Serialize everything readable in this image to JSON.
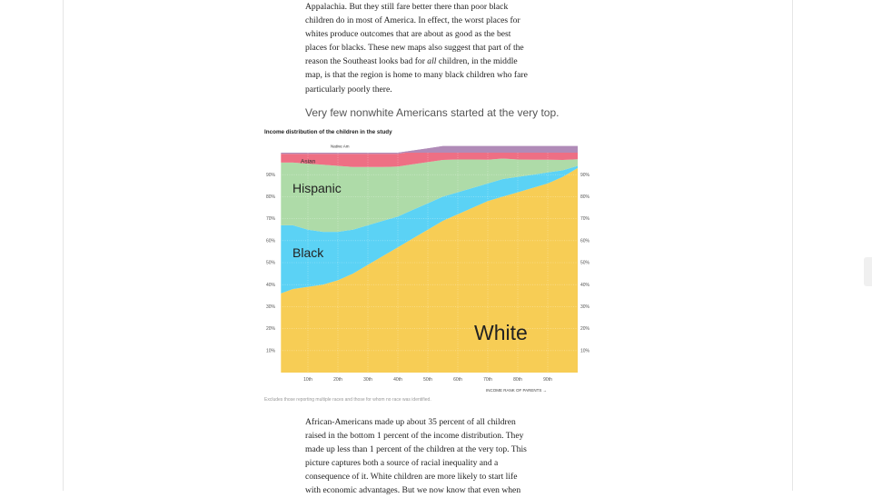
{
  "article": {
    "para_top_lines": [
      "Appalachia. But they still fare better there than poor black",
      "children do in most of America. In effect, the worst places for",
      "whites produce outcomes that are about as good as the best",
      "places for blacks. These new maps also suggest that part of the",
      "reason the Southeast looks bad for ",
      "all",
      " children, in the middle",
      "map, is that the region is home to many black children who fare",
      "particularly poorly there."
    ],
    "subhead": "Very few nonwhite Americans started at the very top.",
    "para_bottom_lines": [
      "African-Americans made up about 35 percent of all children",
      "raised in the bottom 1 percent of the income distribution. They",
      "made up less than 1 percent of the children at the very top. This",
      "picture captures both a source of racial inequality and a",
      "consequence of it. White children are more likely to start life",
      "with economic advantages. But we now know that even when"
    ]
  },
  "chart": {
    "title": "Income distribution of the children in the study",
    "note": "Excludes those reporting multiple races and those for whom no race was identified.",
    "series_labels": {
      "native_am": "Native Am",
      "asian": "Asian",
      "hispanic": "Hispanic",
      "black": "Black",
      "white": "White"
    },
    "xlabel": "INCOME RANK OF PARENTS →",
    "x_ticks": [
      "10th",
      "20th",
      "30th",
      "40th",
      "50th",
      "60th",
      "70th",
      "80th",
      "90th"
    ],
    "y_ticks": [
      "10%",
      "20%",
      "30%",
      "40%",
      "50%",
      "60%",
      "70%",
      "80%",
      "90%"
    ],
    "colors": {
      "white": "#f7cd55",
      "black": "#5bd2f5",
      "hispanic": "#aedba8",
      "asian": "#ee6f84",
      "native_am": "#b08bb8"
    }
  },
  "chart_data": {
    "type": "area",
    "title": "Income distribution of the children in the study",
    "xlabel": "INCOME RANK OF PARENTS",
    "ylabel": "",
    "x": [
      1,
      5,
      10,
      15,
      20,
      25,
      30,
      35,
      40,
      45,
      50,
      55,
      60,
      65,
      70,
      75,
      80,
      85,
      90,
      95,
      100
    ],
    "xlim": [
      0,
      100
    ],
    "ylim": [
      0,
      100
    ],
    "stacked": true,
    "series": [
      {
        "name": "White",
        "values": [
          36,
          38,
          39,
          40,
          42,
          45,
          49,
          53,
          57,
          61,
          65,
          69,
          72,
          75,
          78,
          80,
          82,
          84,
          86,
          89,
          93
        ]
      },
      {
        "name": "Black",
        "values": [
          31,
          29,
          26,
          24,
          22,
          20,
          18,
          16,
          14,
          13,
          12,
          11,
          10,
          9,
          8,
          8,
          7,
          6,
          5,
          3,
          1
        ]
      },
      {
        "name": "Hispanic",
        "values": [
          28.5,
          28.5,
          30,
          30.5,
          30,
          28.5,
          26.5,
          24.5,
          22.7,
          20.7,
          18.7,
          16.7,
          14.9,
          12.9,
          10.8,
          9.3,
          7.9,
          6.8,
          5.8,
          4.7,
          3.0
        ]
      },
      {
        "name": "Asian",
        "values": [
          4,
          4,
          4.5,
          5,
          5.5,
          6,
          6,
          6,
          5.8,
          5.8,
          5.8,
          5.8,
          5.7,
          5.6,
          5.6,
          5.3,
          5.3,
          5.4,
          5.5,
          5.7,
          5.8
        ]
      },
      {
        "name": "Native Am",
        "values": [
          0.5,
          0.5,
          0.5,
          0.5,
          0.5,
          0.5,
          0.5,
          0.5,
          0.5,
          0.5,
          0.5,
          0.5,
          0.4,
          0.5,
          0.6,
          0.4,
          0.8,
          0.8,
          0.7,
          0.6,
          0.2
        ]
      }
    ],
    "legend": "inline labels on areas",
    "grid": true
  }
}
